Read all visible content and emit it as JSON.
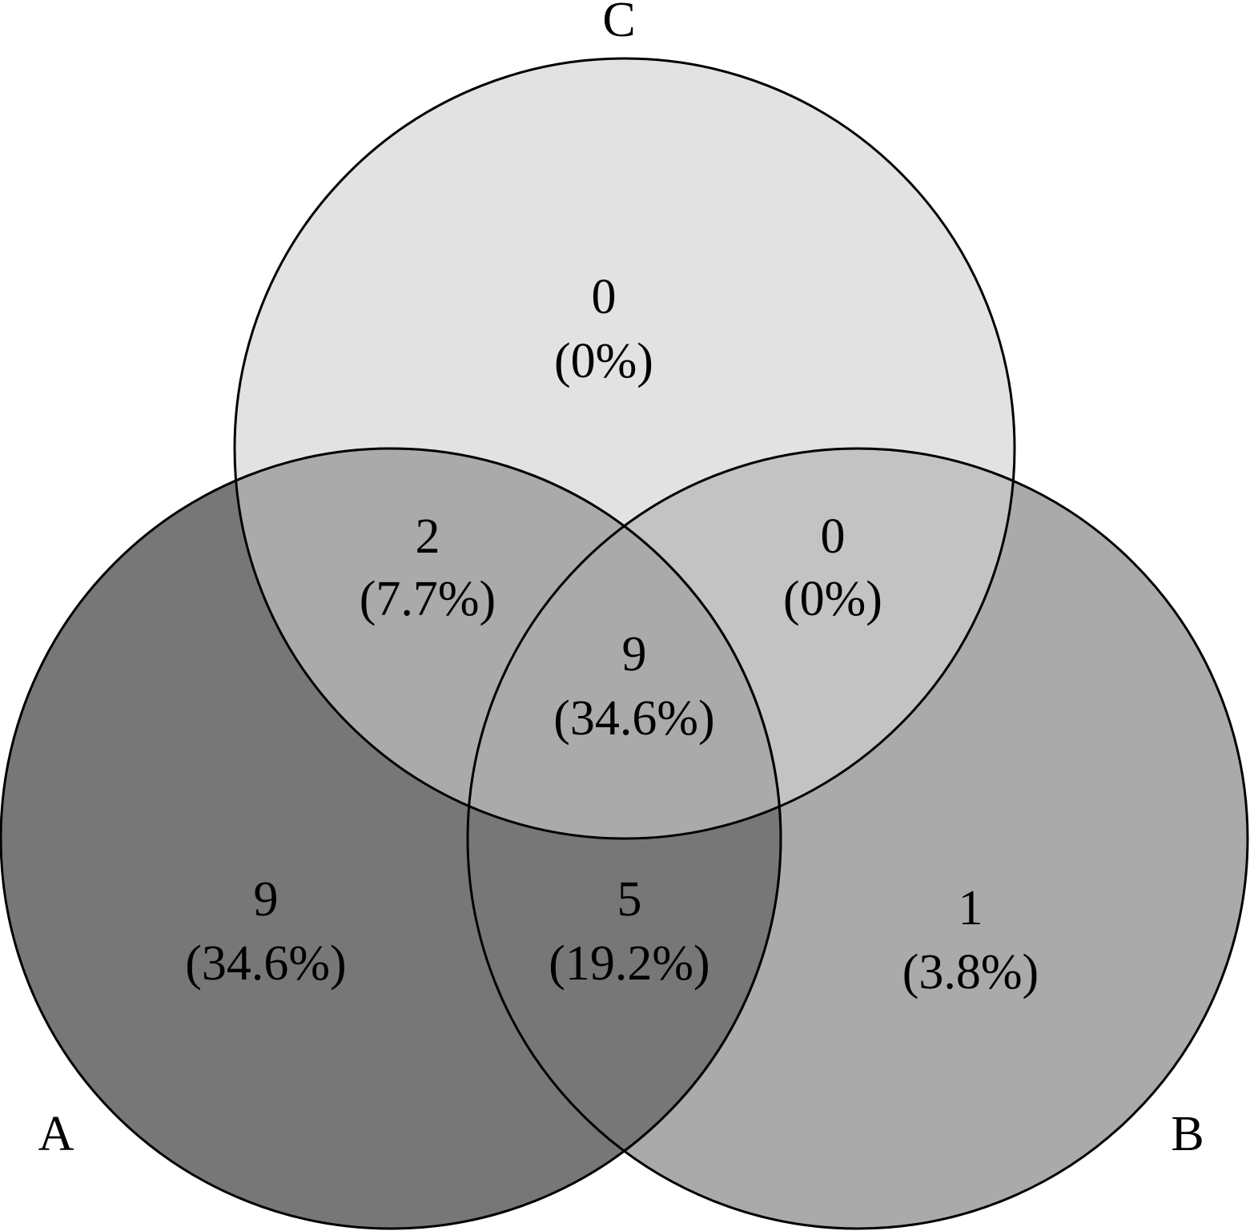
{
  "sets": {
    "A": {
      "label": "A",
      "fill": "#777777"
    },
    "B": {
      "label": "B",
      "fill": "#aaaaaa"
    },
    "C": {
      "label": "C",
      "fill": "#e2e2e2"
    }
  },
  "regions": {
    "a_only": {
      "count": "9",
      "percent": "(34.6%)"
    },
    "b_only": {
      "count": "1",
      "percent": "(3.8%)"
    },
    "c_only": {
      "count": "0",
      "percent": "(0%)"
    },
    "ab": {
      "count": "5",
      "percent": "(19.2%)"
    },
    "ac": {
      "count": "2",
      "percent": "(7.7%)"
    },
    "bc": {
      "count": "0",
      "percent": "(0%)"
    },
    "abc": {
      "count": "9",
      "percent": "(34.6%)"
    }
  },
  "colors": {
    "ab_fill": "#777777",
    "ac_fill": "#aaaaaa",
    "bc_fill": "#c3c3c3",
    "abc_fill": "#aaaaaa",
    "stroke": "#000000"
  }
}
